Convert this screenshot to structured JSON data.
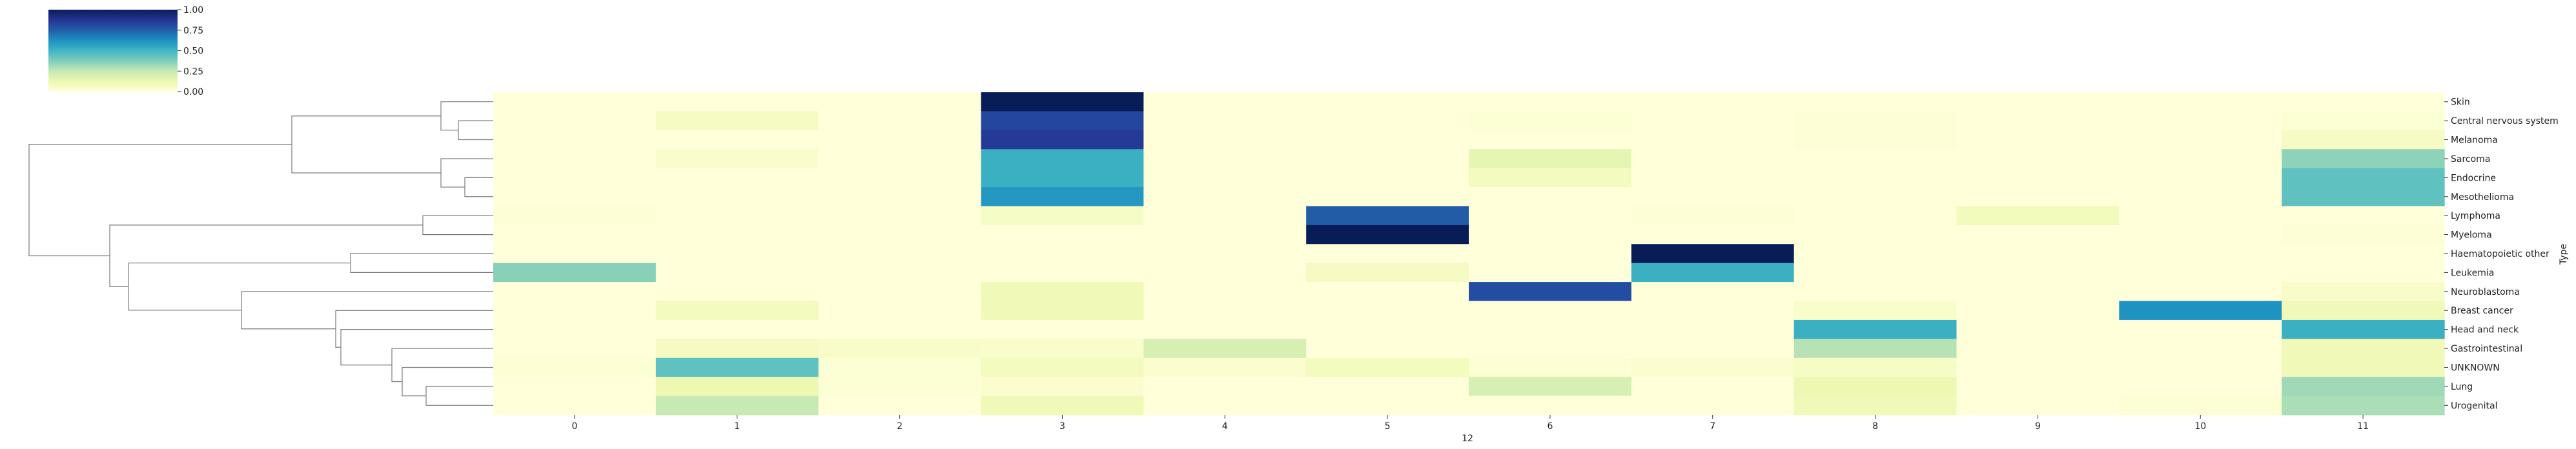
{
  "chart_data": {
    "type": "heatmap",
    "title": "",
    "xlabel": "12",
    "ylabel": "Type",
    "colormap": "YlGnBu",
    "colorbar": {
      "min": 0,
      "max": 1,
      "ticks": [
        "0.00",
        "0.25",
        "0.50",
        "0.75",
        "1.00"
      ]
    },
    "x_categories": [
      "0",
      "1",
      "2",
      "3",
      "4",
      "5",
      "6",
      "7",
      "8",
      "9",
      "10",
      "11"
    ],
    "y_categories": [
      "Skin",
      "Central nervous system",
      "Melanoma",
      "Sarcoma",
      "Endocrine",
      "Mesothelioma",
      "Lymphoma",
      "Myeloma",
      "Haematopoietic other",
      "Leukemia",
      "Neuroblastoma",
      "Breast cancer",
      "Head and neck",
      "Gastrointestinal",
      "UNKNOWN",
      "Lung",
      "Urogenital"
    ],
    "values": [
      [
        0.0,
        0.0,
        0.0,
        1.0,
        0.0,
        0.0,
        0.0,
        0.0,
        0.0,
        0.0,
        0.0,
        0.0
      ],
      [
        0.0,
        0.07,
        0.0,
        0.82,
        0.0,
        0.0,
        0.02,
        0.0,
        0.01,
        0.0,
        0.0,
        0.02
      ],
      [
        0.0,
        0.0,
        0.0,
        0.86,
        0.0,
        0.0,
        0.0,
        0.0,
        0.01,
        0.0,
        0.0,
        0.07
      ],
      [
        0.0,
        0.04,
        0.0,
        0.52,
        0.0,
        0.0,
        0.15,
        0.0,
        0.0,
        0.0,
        0.0,
        0.35
      ],
      [
        0.0,
        0.0,
        0.0,
        0.52,
        0.0,
        0.0,
        0.08,
        0.0,
        0.0,
        0.0,
        0.0,
        0.44
      ],
      [
        0.0,
        0.0,
        0.0,
        0.6,
        0.0,
        0.0,
        0.0,
        0.0,
        0.0,
        0.0,
        0.0,
        0.44
      ],
      [
        0.01,
        0.0,
        0.0,
        0.06,
        0.0,
        0.76,
        0.0,
        0.01,
        0.0,
        0.09,
        0.0,
        0.0
      ],
      [
        0.0,
        0.0,
        0.0,
        0.0,
        0.0,
        1.0,
        0.0,
        0.0,
        0.0,
        0.0,
        0.0,
        0.01
      ],
      [
        0.0,
        0.0,
        0.0,
        0.0,
        0.0,
        0.0,
        0.0,
        1.0,
        0.0,
        0.0,
        0.0,
        0.0
      ],
      [
        0.36,
        0.0,
        0.0,
        0.0,
        0.0,
        0.07,
        0.0,
        0.52,
        0.0,
        0.0,
        0.0,
        0.0
      ],
      [
        0.0,
        0.0,
        0.0,
        0.1,
        0.0,
        0.0,
        0.8,
        0.0,
        0.0,
        0.0,
        0.0,
        0.05
      ],
      [
        0.0,
        0.08,
        0.0,
        0.1,
        0.0,
        0.0,
        0.0,
        0.0,
        0.04,
        0.0,
        0.62,
        0.1
      ],
      [
        0.0,
        0.0,
        0.0,
        0.0,
        0.0,
        0.0,
        0.0,
        0.0,
        0.52,
        0.0,
        0.0,
        0.52
      ],
      [
        0.0,
        0.07,
        0.05,
        0.04,
        0.2,
        0.0,
        0.0,
        0.0,
        0.28,
        0.0,
        0.0,
        0.1
      ],
      [
        0.02,
        0.44,
        0.02,
        0.08,
        0.03,
        0.08,
        0.02,
        0.03,
        0.06,
        0.0,
        0.0,
        0.1
      ],
      [
        0.0,
        0.12,
        0.02,
        0.03,
        0.0,
        0.0,
        0.2,
        0.0,
        0.12,
        0.0,
        0.0,
        0.32
      ],
      [
        0.0,
        0.25,
        0.0,
        0.1,
        0.0,
        0.0,
        0.0,
        0.0,
        0.1,
        0.0,
        0.02,
        0.3
      ]
    ],
    "dendrogram": "row clustering tree on the left side"
  }
}
